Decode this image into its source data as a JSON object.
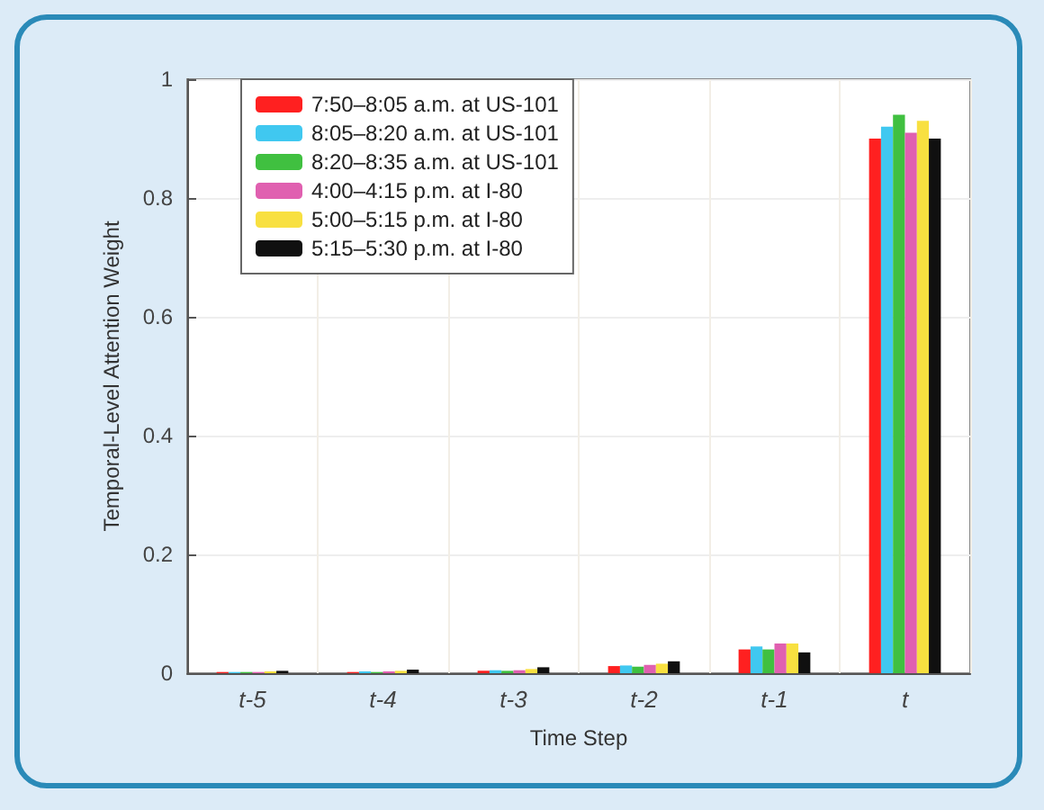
{
  "chart_data": {
    "type": "bar",
    "xlabel": "Time Step",
    "ylabel": "Temporal-Level Attention Weight",
    "categories": [
      "t-5",
      "t-4",
      "t-3",
      "t-2",
      "t-1",
      "t"
    ],
    "series": [
      {
        "name": "7:50–8:05 a.m. at US-101",
        "color": "#ff2020",
        "values": [
          0.002,
          0.002,
          0.004,
          0.012,
          0.04,
          0.9
        ]
      },
      {
        "name": "8:05–8:20 a.m. at US-101",
        "color": "#40c8f0",
        "values": [
          0.002,
          0.003,
          0.005,
          0.013,
          0.045,
          0.92
        ]
      },
      {
        "name": "8:20–8:35 a.m. at US-101",
        "color": "#40c040",
        "values": [
          0.002,
          0.002,
          0.004,
          0.011,
          0.04,
          0.94
        ]
      },
      {
        "name": "4:00–4:15 p.m. at I-80",
        "color": "#e060b0",
        "values": [
          0.002,
          0.003,
          0.005,
          0.014,
          0.05,
          0.91
        ]
      },
      {
        "name": "5:00–5:15 p.m. at I-80",
        "color": "#f8e040",
        "values": [
          0.003,
          0.004,
          0.007,
          0.016,
          0.05,
          0.93
        ]
      },
      {
        "name": "5:15–5:30 p.m. at I-80",
        "color": "#101010",
        "values": [
          0.004,
          0.006,
          0.01,
          0.02,
          0.035,
          0.9
        ]
      }
    ],
    "ylim": [
      0,
      1
    ],
    "yticks": [
      0,
      0.2,
      0.4,
      0.6,
      0.8,
      1
    ],
    "grid": true,
    "legend": "top left"
  }
}
